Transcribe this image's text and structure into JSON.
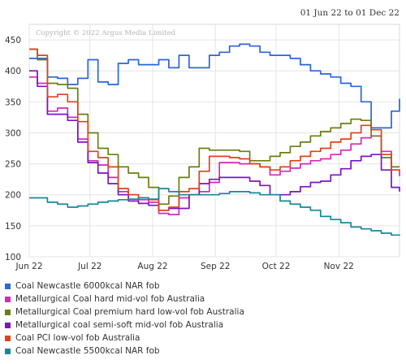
{
  "date_range": "01 Jun 22 to 01 Dec 22",
  "chart_data": {
    "type": "line",
    "copyright": "Copyright © 2022 Argus Media Limited",
    "title": "",
    "xlabel": "",
    "ylabel": "",
    "ylim": [
      100,
      475
    ],
    "yticks": [
      100,
      150,
      200,
      250,
      300,
      350,
      400,
      450
    ],
    "grid": true,
    "legend_position": "bottom",
    "x": [
      "2022-06-01",
      "2022-06-05",
      "2022-06-10",
      "2022-06-15",
      "2022-06-20",
      "2022-06-25",
      "2022-06-30",
      "2022-07-05",
      "2022-07-10",
      "2022-07-15",
      "2022-07-20",
      "2022-07-25",
      "2022-07-30",
      "2022-08-04",
      "2022-08-09",
      "2022-08-14",
      "2022-08-19",
      "2022-08-24",
      "2022-08-29",
      "2022-09-03",
      "2022-09-08",
      "2022-09-13",
      "2022-09-18",
      "2022-09-23",
      "2022-09-28",
      "2022-10-03",
      "2022-10-08",
      "2022-10-13",
      "2022-10-18",
      "2022-10-23",
      "2022-10-28",
      "2022-11-02",
      "2022-11-07",
      "2022-11-12",
      "2022-11-17",
      "2022-11-22",
      "2022-11-27",
      "2022-12-01"
    ],
    "xtick_labels": [
      {
        "label": "Jun 22",
        "date": "2022-06-01"
      },
      {
        "label": "Jul 22",
        "date": "2022-07-01"
      },
      {
        "label": "Aug 22",
        "date": "2022-08-01"
      },
      {
        "label": "Sep 22",
        "date": "2022-09-01"
      },
      {
        "label": "Oct 22",
        "date": "2022-10-01"
      },
      {
        "label": "Nov 22",
        "date": "2022-11-01"
      }
    ],
    "series": [
      {
        "name": "Coal Newcastle 6000kcal NAR fob",
        "color": "#2966d8",
        "values": [
          420,
          420,
          390,
          388,
          378,
          388,
          418,
          382,
          378,
          412,
          418,
          410,
          410,
          418,
          405,
          425,
          405,
          405,
          425,
          430,
          440,
          443,
          440,
          430,
          425,
          425,
          420,
          410,
          400,
          395,
          390,
          380,
          375,
          350,
          308,
          308,
          335,
          355
        ]
      },
      {
        "name": "Metallurgical Coal hard mid-vol fob Australia",
        "color": "#d52ab6",
        "values": [
          390,
          380,
          335,
          340,
          325,
          290,
          255,
          248,
          228,
          205,
          200,
          192,
          188,
          170,
          168,
          195,
          200,
          205,
          220,
          252,
          252,
          250,
          250,
          245,
          232,
          238,
          243,
          250,
          255,
          258,
          265,
          272,
          282,
          292,
          295,
          270,
          240,
          230
        ]
      },
      {
        "name": "Metallurgical Coal premium hard low-vol fob Australia",
        "color": "#6b7d14",
        "values": [
          435,
          418,
          380,
          378,
          372,
          330,
          300,
          275,
          265,
          245,
          235,
          228,
          212,
          185,
          198,
          228,
          245,
          275,
          272,
          272,
          272,
          270,
          255,
          255,
          262,
          268,
          278,
          285,
          295,
          302,
          308,
          315,
          322,
          320,
          295,
          260,
          245,
          245
        ]
      },
      {
        "name": "Metallurgical coal semi-soft mid-vol fob Australia",
        "color": "#7a14c4",
        "values": [
          400,
          375,
          330,
          330,
          320,
          285,
          252,
          235,
          218,
          200,
          190,
          186,
          183,
          175,
          178,
          178,
          200,
          218,
          225,
          228,
          228,
          228,
          222,
          215,
          200,
          200,
          205,
          213,
          220,
          222,
          232,
          242,
          255,
          262,
          265,
          240,
          212,
          205
        ]
      },
      {
        "name": "Coal PCI low-vol fob Australia",
        "color": "#e0421a",
        "values": [
          435,
          425,
          358,
          362,
          350,
          318,
          270,
          260,
          245,
          210,
          200,
          195,
          192,
          175,
          180,
          205,
          210,
          238,
          262,
          262,
          260,
          258,
          250,
          245,
          240,
          245,
          255,
          262,
          270,
          275,
          285,
          290,
          300,
          312,
          305,
          265,
          240,
          238
        ]
      },
      {
        "name": "Coal Newcastle 5500kcal NAR fob",
        "color": "#17879a",
        "values": [
          195,
          195,
          188,
          185,
          180,
          182,
          185,
          188,
          190,
          192,
          193,
          195,
          193,
          210,
          205,
          200,
          200,
          200,
          200,
          202,
          205,
          205,
          203,
          200,
          200,
          190,
          185,
          180,
          175,
          165,
          160,
          155,
          148,
          145,
          142,
          138,
          135,
          136
        ]
      }
    ]
  }
}
